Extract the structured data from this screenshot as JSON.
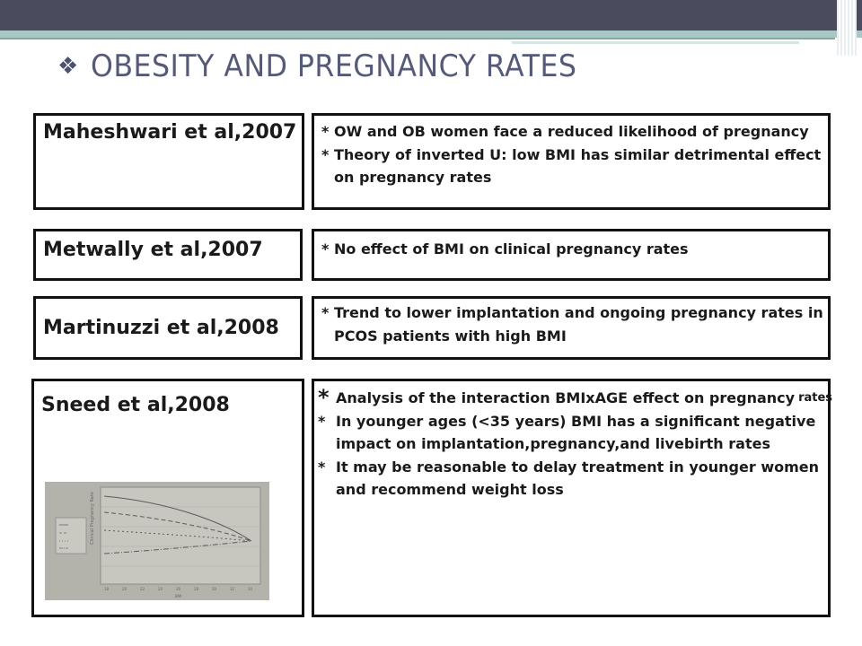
{
  "slide": {
    "title": "OBESITY AND PREGNANCY RATES",
    "title_bullet": "❖",
    "accent_colors": {
      "banner": "#4a4b5d",
      "teal": "#a9c7c4",
      "title": "#555a78"
    }
  },
  "studies": [
    {
      "author": "Maheshwari et al,2007",
      "findings": [
        {
          "marker": "*",
          "lines": [
            "OW and OB women face a reduced likelihood of pregnancy"
          ]
        },
        {
          "marker": "*",
          "lines": [
            "Theory of inverted U: low BMI has similar detrimental effect",
            "on pregnancy rates"
          ]
        }
      ]
    },
    {
      "author": "Metwally et al,2007",
      "findings": [
        {
          "marker": "*",
          "lines": [
            "No effect of BMI on clinical pregnancy rates"
          ]
        }
      ]
    },
    {
      "author": "Martinuzzi et al,2008",
      "findings": [
        {
          "marker": "*",
          "lines": [
            "Trend  to lower implantation and ongoing pregnancy rates in",
            "PCOS patients with high BMI"
          ]
        }
      ]
    },
    {
      "author": "Sneed et al,2008",
      "findings": [
        {
          "marker": "*",
          "lines": [
            "Analysis of the interaction BMIxAGE effect on pregnancy"
          ],
          "tail": "rates"
        },
        {
          "marker": "*",
          "lines": [
            "In younger ages (<35 years) BMI has a significant negative",
            "impact on implantation,pregnancy,and livebirth rates"
          ]
        },
        {
          "marker": "*",
          "lines": [
            "It may be reasonable to delay treatment in younger women",
            "and recommend weight loss"
          ]
        }
      ]
    }
  ]
}
